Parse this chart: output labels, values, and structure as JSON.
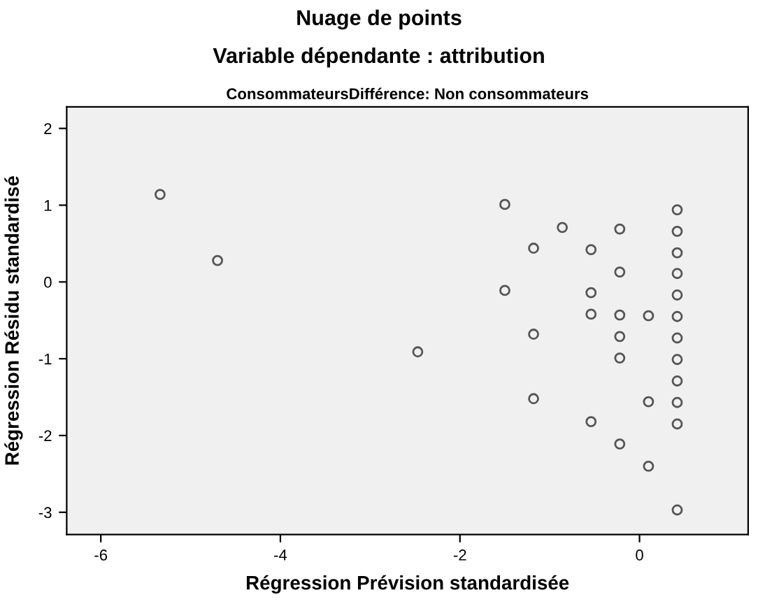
{
  "chart_data": {
    "type": "scatter",
    "title": "Nuage de points",
    "subtitle": "Variable dépendante : attribution",
    "annotations": [
      "ConsommateursDifférence: Non consommateurs"
    ],
    "xlabel": "Régression Prévision standardisée",
    "ylabel": "Régression Résidu standardisé",
    "x": [
      -5.34,
      -4.7,
      -1.5,
      -0.86,
      -1.18,
      -0.54,
      -0.22,
      -0.22,
      -1.5,
      -0.54,
      0.42,
      0.42,
      0.42,
      0.42,
      0.42,
      0.42,
      -0.54,
      -0.22,
      0.1,
      -1.18,
      -0.22,
      -0.22,
      -2.47,
      0.42,
      0.42,
      0.42,
      0.42,
      0.42,
      -1.18,
      0.1,
      -0.54,
      -0.22,
      0.1,
      0.42
    ],
    "values": [
      1.14,
      0.28,
      1.01,
      0.71,
      0.44,
      0.42,
      0.69,
      0.13,
      -0.11,
      -0.14,
      0.94,
      0.66,
      0.38,
      0.11,
      -0.17,
      -0.45,
      -0.42,
      -0.43,
      -0.44,
      -0.68,
      -0.71,
      -0.99,
      -0.91,
      -0.73,
      -1.01,
      -1.29,
      -1.57,
      -1.85,
      -1.52,
      -1.56,
      -1.82,
      -2.11,
      -2.4,
      -2.97
    ],
    "color": "#555555",
    "marker": "circle",
    "xlim": [
      -6.38,
      1.21
    ],
    "ylim": [
      -3.29,
      2.28
    ],
    "xticks": [
      {
        "value": -6,
        "label": "-6"
      },
      {
        "value": -4,
        "label": "-4"
      },
      {
        "value": -2,
        "label": "-2"
      },
      0
    ],
    "yticks": [
      {
        "value": -3,
        "label": "-3"
      },
      {
        "value": -2,
        "label": "-2"
      },
      {
        "value": -1,
        "label": "-1"
      },
      0,
      1,
      2
    ],
    "grid": false,
    "legend": false
  }
}
